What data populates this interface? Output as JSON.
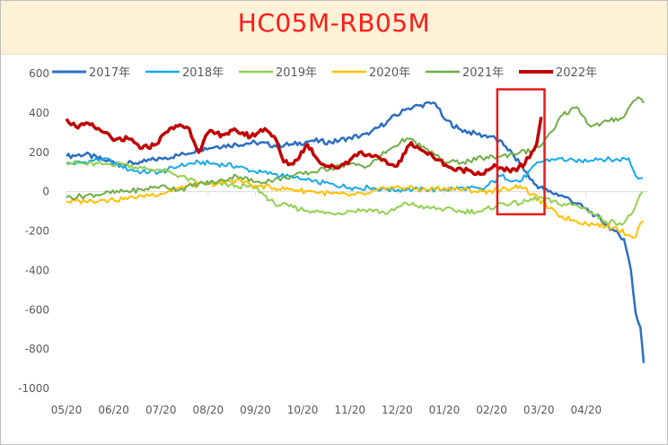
{
  "chart_data": {
    "type": "line",
    "title": "HC05M-RB05M",
    "x_tick_labels": [
      "05/20",
      "06/20",
      "07/20",
      "08/20",
      "09/20",
      "10/20",
      "11/20",
      "12/20",
      "01/20",
      "02/20",
      "03/20",
      "04/20"
    ],
    "ylim": [
      -1000,
      600
    ],
    "y_ticks": [
      600,
      400,
      200,
      0,
      -200,
      -400,
      -600,
      -800,
      -1000
    ],
    "legend_position": "top",
    "grid": false,
    "highlight_box": {
      "x_from": 9.12,
      "x_to": 10.12,
      "y_from": -115,
      "y_to": 520,
      "color": "#e8191a"
    },
    "series": [
      {
        "name": "2017年",
        "color": "#2e6fc0",
        "width": 2.5,
        "points": [
          [
            0,
            180
          ],
          [
            0.4,
            190
          ],
          [
            0.8,
            160
          ],
          [
            1.2,
            140
          ],
          [
            1.6,
            150
          ],
          [
            2.0,
            170
          ],
          [
            2.4,
            185
          ],
          [
            2.8,
            215
          ],
          [
            3.2,
            230
          ],
          [
            3.6,
            240
          ],
          [
            4.0,
            250
          ],
          [
            4.4,
            235
          ],
          [
            4.8,
            240
          ],
          [
            5.2,
            260
          ],
          [
            5.6,
            250
          ],
          [
            6.0,
            275
          ],
          [
            6.4,
            290
          ],
          [
            6.8,
            360
          ],
          [
            7.2,
            420
          ],
          [
            7.5,
            440
          ],
          [
            7.8,
            450
          ],
          [
            8.0,
            370
          ],
          [
            8.3,
            320
          ],
          [
            8.7,
            290
          ],
          [
            9.0,
            280
          ],
          [
            9.3,
            230
          ],
          [
            9.6,
            140
          ],
          [
            9.9,
            40
          ],
          [
            10.2,
            0
          ],
          [
            10.5,
            -20
          ],
          [
            10.8,
            -60
          ],
          [
            11.2,
            -120
          ],
          [
            11.6,
            -200
          ],
          [
            11.8,
            -240
          ],
          [
            11.95,
            -400
          ],
          [
            12.05,
            -620
          ],
          [
            12.15,
            -690
          ],
          [
            12.22,
            -870
          ]
        ]
      },
      {
        "name": "2018年",
        "color": "#19a9e8",
        "width": 2,
        "points": [
          [
            0,
            140
          ],
          [
            0.4,
            150
          ],
          [
            0.8,
            170
          ],
          [
            1.2,
            120
          ],
          [
            1.6,
            100
          ],
          [
            2.0,
            100
          ],
          [
            2.4,
            130
          ],
          [
            2.8,
            150
          ],
          [
            3.2,
            140
          ],
          [
            3.6,
            130
          ],
          [
            4.0,
            100
          ],
          [
            4.4,
            90
          ],
          [
            4.8,
            70
          ],
          [
            5.2,
            50
          ],
          [
            5.6,
            40
          ],
          [
            6.0,
            20
          ],
          [
            6.4,
            20
          ],
          [
            6.8,
            10
          ],
          [
            7.2,
            10
          ],
          [
            7.6,
            10
          ],
          [
            8.0,
            10
          ],
          [
            8.4,
            20
          ],
          [
            8.8,
            10
          ],
          [
            9.2,
            80
          ],
          [
            9.6,
            50
          ],
          [
            10.0,
            150
          ],
          [
            10.4,
            170
          ],
          [
            10.8,
            150
          ],
          [
            11.2,
            170
          ],
          [
            11.6,
            160
          ],
          [
            11.9,
            170
          ],
          [
            12.05,
            80
          ],
          [
            12.2,
            70
          ]
        ]
      },
      {
        "name": "2019年",
        "color": "#92d050",
        "width": 2,
        "points": [
          [
            0,
            150
          ],
          [
            0.4,
            140
          ],
          [
            0.8,
            140
          ],
          [
            1.2,
            140
          ],
          [
            1.6,
            120
          ],
          [
            2.0,
            110
          ],
          [
            2.4,
            80
          ],
          [
            2.8,
            40
          ],
          [
            3.2,
            40
          ],
          [
            3.6,
            30
          ],
          [
            4.0,
            20
          ],
          [
            4.4,
            -60
          ],
          [
            4.8,
            -80
          ],
          [
            5.2,
            -100
          ],
          [
            5.6,
            -110
          ],
          [
            6.0,
            -100
          ],
          [
            6.4,
            -90
          ],
          [
            6.8,
            -110
          ],
          [
            7.2,
            -60
          ],
          [
            7.6,
            -80
          ],
          [
            8.0,
            -90
          ],
          [
            8.4,
            -100
          ],
          [
            8.8,
            -100
          ],
          [
            9.2,
            -60
          ],
          [
            9.6,
            -60
          ],
          [
            10.0,
            -30
          ],
          [
            10.4,
            -60
          ],
          [
            10.8,
            -70
          ],
          [
            11.0,
            -90
          ],
          [
            11.4,
            -150
          ],
          [
            11.8,
            -160
          ],
          [
            12.0,
            -100
          ],
          [
            12.2,
            0
          ]
        ]
      },
      {
        "name": "2020年",
        "color": "#ffc000",
        "width": 2,
        "points": [
          [
            0,
            -50
          ],
          [
            0.4,
            -50
          ],
          [
            0.8,
            -40
          ],
          [
            1.2,
            -40
          ],
          [
            1.6,
            -20
          ],
          [
            2.0,
            -10
          ],
          [
            2.4,
            20
          ],
          [
            2.8,
            40
          ],
          [
            3.2,
            40
          ],
          [
            3.6,
            60
          ],
          [
            4.0,
            30
          ],
          [
            4.4,
            20
          ],
          [
            4.8,
            10
          ],
          [
            5.2,
            0
          ],
          [
            5.6,
            -10
          ],
          [
            6.0,
            -20
          ],
          [
            6.4,
            -10
          ],
          [
            6.8,
            20
          ],
          [
            7.2,
            20
          ],
          [
            7.6,
            10
          ],
          [
            8.0,
            20
          ],
          [
            8.4,
            10
          ],
          [
            8.8,
            0
          ],
          [
            9.2,
            10
          ],
          [
            9.6,
            30
          ],
          [
            10.0,
            -40
          ],
          [
            10.4,
            -120
          ],
          [
            10.8,
            -150
          ],
          [
            11.2,
            -170
          ],
          [
            11.6,
            -180
          ],
          [
            11.9,
            -220
          ],
          [
            12.05,
            -230
          ],
          [
            12.15,
            -160
          ],
          [
            12.22,
            -150
          ]
        ]
      },
      {
        "name": "2021年",
        "color": "#70ad47",
        "width": 2,
        "points": [
          [
            0,
            -30
          ],
          [
            0.4,
            -20
          ],
          [
            0.8,
            -10
          ],
          [
            1.2,
            0
          ],
          [
            1.6,
            10
          ],
          [
            2.0,
            30
          ],
          [
            2.4,
            10
          ],
          [
            2.8,
            40
          ],
          [
            3.2,
            50
          ],
          [
            3.6,
            80
          ],
          [
            4.0,
            50
          ],
          [
            4.4,
            60
          ],
          [
            4.8,
            80
          ],
          [
            5.2,
            100
          ],
          [
            5.6,
            120
          ],
          [
            6.0,
            140
          ],
          [
            6.4,
            130
          ],
          [
            6.8,
            210
          ],
          [
            7.2,
            270
          ],
          [
            7.6,
            220
          ],
          [
            8.0,
            150
          ],
          [
            8.4,
            150
          ],
          [
            8.8,
            170
          ],
          [
            9.2,
            180
          ],
          [
            9.6,
            200
          ],
          [
            9.9,
            210
          ],
          [
            10.1,
            250
          ],
          [
            10.3,
            310
          ],
          [
            10.5,
            390
          ],
          [
            10.8,
            430
          ],
          [
            11.1,
            330
          ],
          [
            11.5,
            360
          ],
          [
            11.8,
            380
          ],
          [
            12.0,
            460
          ],
          [
            12.1,
            480
          ],
          [
            12.22,
            450
          ]
        ]
      },
      {
        "name": "2022年",
        "color": "#c00000",
        "width": 3.5,
        "points": [
          [
            0,
            370
          ],
          [
            0.2,
            330
          ],
          [
            0.5,
            340
          ],
          [
            0.8,
            300
          ],
          [
            1.0,
            260
          ],
          [
            1.3,
            270
          ],
          [
            1.6,
            220
          ],
          [
            1.9,
            240
          ],
          [
            2.1,
            300
          ],
          [
            2.4,
            340
          ],
          [
            2.6,
            320
          ],
          [
            2.8,
            200
          ],
          [
            3.0,
            300
          ],
          [
            3.3,
            290
          ],
          [
            3.6,
            310
          ],
          [
            3.9,
            280
          ],
          [
            4.2,
            320
          ],
          [
            4.4,
            280
          ],
          [
            4.6,
            150
          ],
          [
            4.8,
            140
          ],
          [
            5.1,
            240
          ],
          [
            5.4,
            140
          ],
          [
            5.7,
            120
          ],
          [
            6.0,
            160
          ],
          [
            6.2,
            200
          ],
          [
            6.5,
            180
          ],
          [
            6.8,
            140
          ],
          [
            7.0,
            130
          ],
          [
            7.3,
            250
          ],
          [
            7.6,
            200
          ],
          [
            7.9,
            160
          ],
          [
            8.2,
            110
          ],
          [
            8.5,
            110
          ],
          [
            8.8,
            90
          ],
          [
            9.1,
            130
          ],
          [
            9.4,
            100
          ],
          [
            9.7,
            140
          ],
          [
            9.85,
            200
          ],
          [
            9.95,
            240
          ],
          [
            10.05,
            380
          ]
        ]
      }
    ]
  }
}
